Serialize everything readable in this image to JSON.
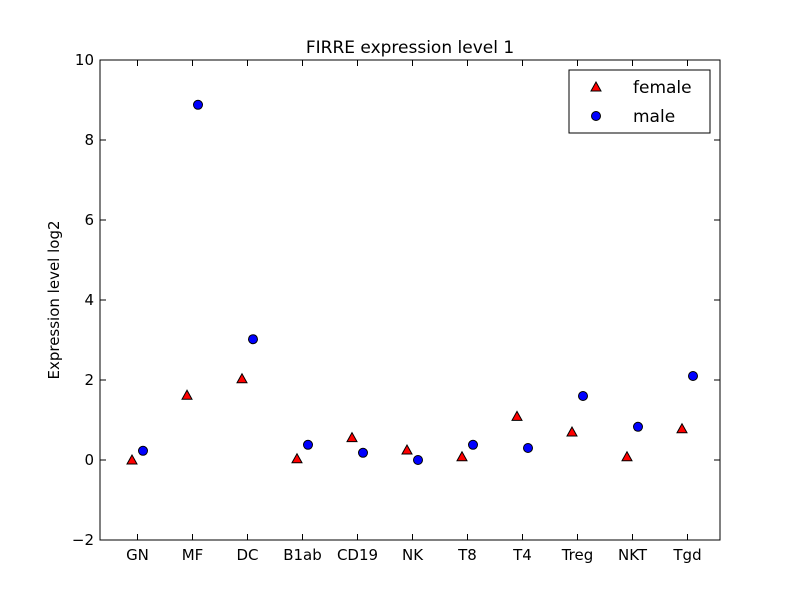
{
  "chart_data": {
    "type": "scatter",
    "title": "FIRRE expression level 1",
    "xlabel": "",
    "ylabel": "Expression level log2",
    "categories": [
      "GN",
      "MF",
      "DC",
      "B1ab",
      "CD19",
      "NK",
      "T8",
      "T4",
      "Treg",
      "NKT",
      "Tgd"
    ],
    "ylim": [
      -2,
      10
    ],
    "yticks": [
      -2,
      0,
      2,
      4,
      6,
      8,
      10
    ],
    "yticklabels": [
      "−2",
      "0",
      "2",
      "4",
      "6",
      "8",
      "10"
    ],
    "grid": false,
    "legend_position": "top-right",
    "series": [
      {
        "name": "female",
        "marker": "triangle",
        "color": "#ff0000",
        "values": [
          0.0,
          1.62,
          2.03,
          0.03,
          0.56,
          0.25,
          0.08,
          1.09,
          0.7,
          0.08,
          0.78
        ]
      },
      {
        "name": "male",
        "marker": "circle",
        "color": "#0000ff",
        "values": [
          0.23,
          8.88,
          3.02,
          0.38,
          0.18,
          0.0,
          0.38,
          0.3,
          1.6,
          0.83,
          2.1
        ]
      }
    ]
  }
}
